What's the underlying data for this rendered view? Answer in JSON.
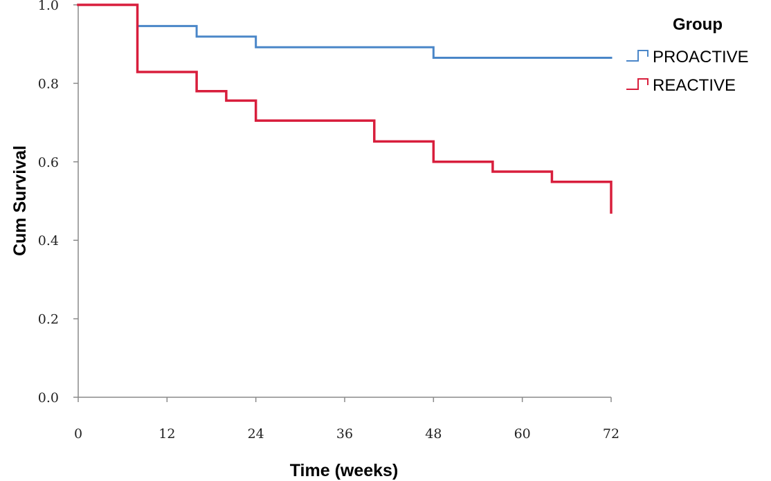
{
  "chart_data": {
    "type": "line",
    "step": true,
    "xlabel": "Time (weeks)",
    "ylabel": "Cum Survival",
    "xlim": [
      0,
      72
    ],
    "ylim": [
      0.0,
      1.0
    ],
    "x_ticks": [
      0,
      12,
      24,
      36,
      48,
      60,
      72
    ],
    "x_tick_labels": [
      "0",
      "12",
      "24",
      "36",
      "48",
      "60",
      "72"
    ],
    "y_ticks": [
      0.0,
      0.2,
      0.4,
      0.6,
      0.8,
      1.0
    ],
    "y_tick_labels": [
      "0.0",
      "0.2",
      "0.4",
      "0.6",
      "0.8",
      "1.0"
    ],
    "grid": false,
    "legend": {
      "title": "Group",
      "placement": "top-right"
    },
    "series": [
      {
        "name": "PROACTIVE",
        "color": "#4a86c8",
        "points": [
          [
            0,
            1.0
          ],
          [
            8,
            0.946
          ],
          [
            16,
            0.919
          ],
          [
            24,
            0.892
          ],
          [
            48,
            0.865
          ],
          [
            72,
            0.865
          ]
        ]
      },
      {
        "name": "REACTIVE",
        "color": "#d81e3c",
        "points": [
          [
            0,
            1.0
          ],
          [
            8,
            0.829
          ],
          [
            16,
            0.78
          ],
          [
            20,
            0.756
          ],
          [
            24,
            0.705
          ],
          [
            40,
            0.652
          ],
          [
            48,
            0.6
          ],
          [
            56,
            0.575
          ],
          [
            64,
            0.549
          ],
          [
            72,
            0.549
          ],
          [
            72,
            0.471
          ]
        ]
      }
    ]
  }
}
